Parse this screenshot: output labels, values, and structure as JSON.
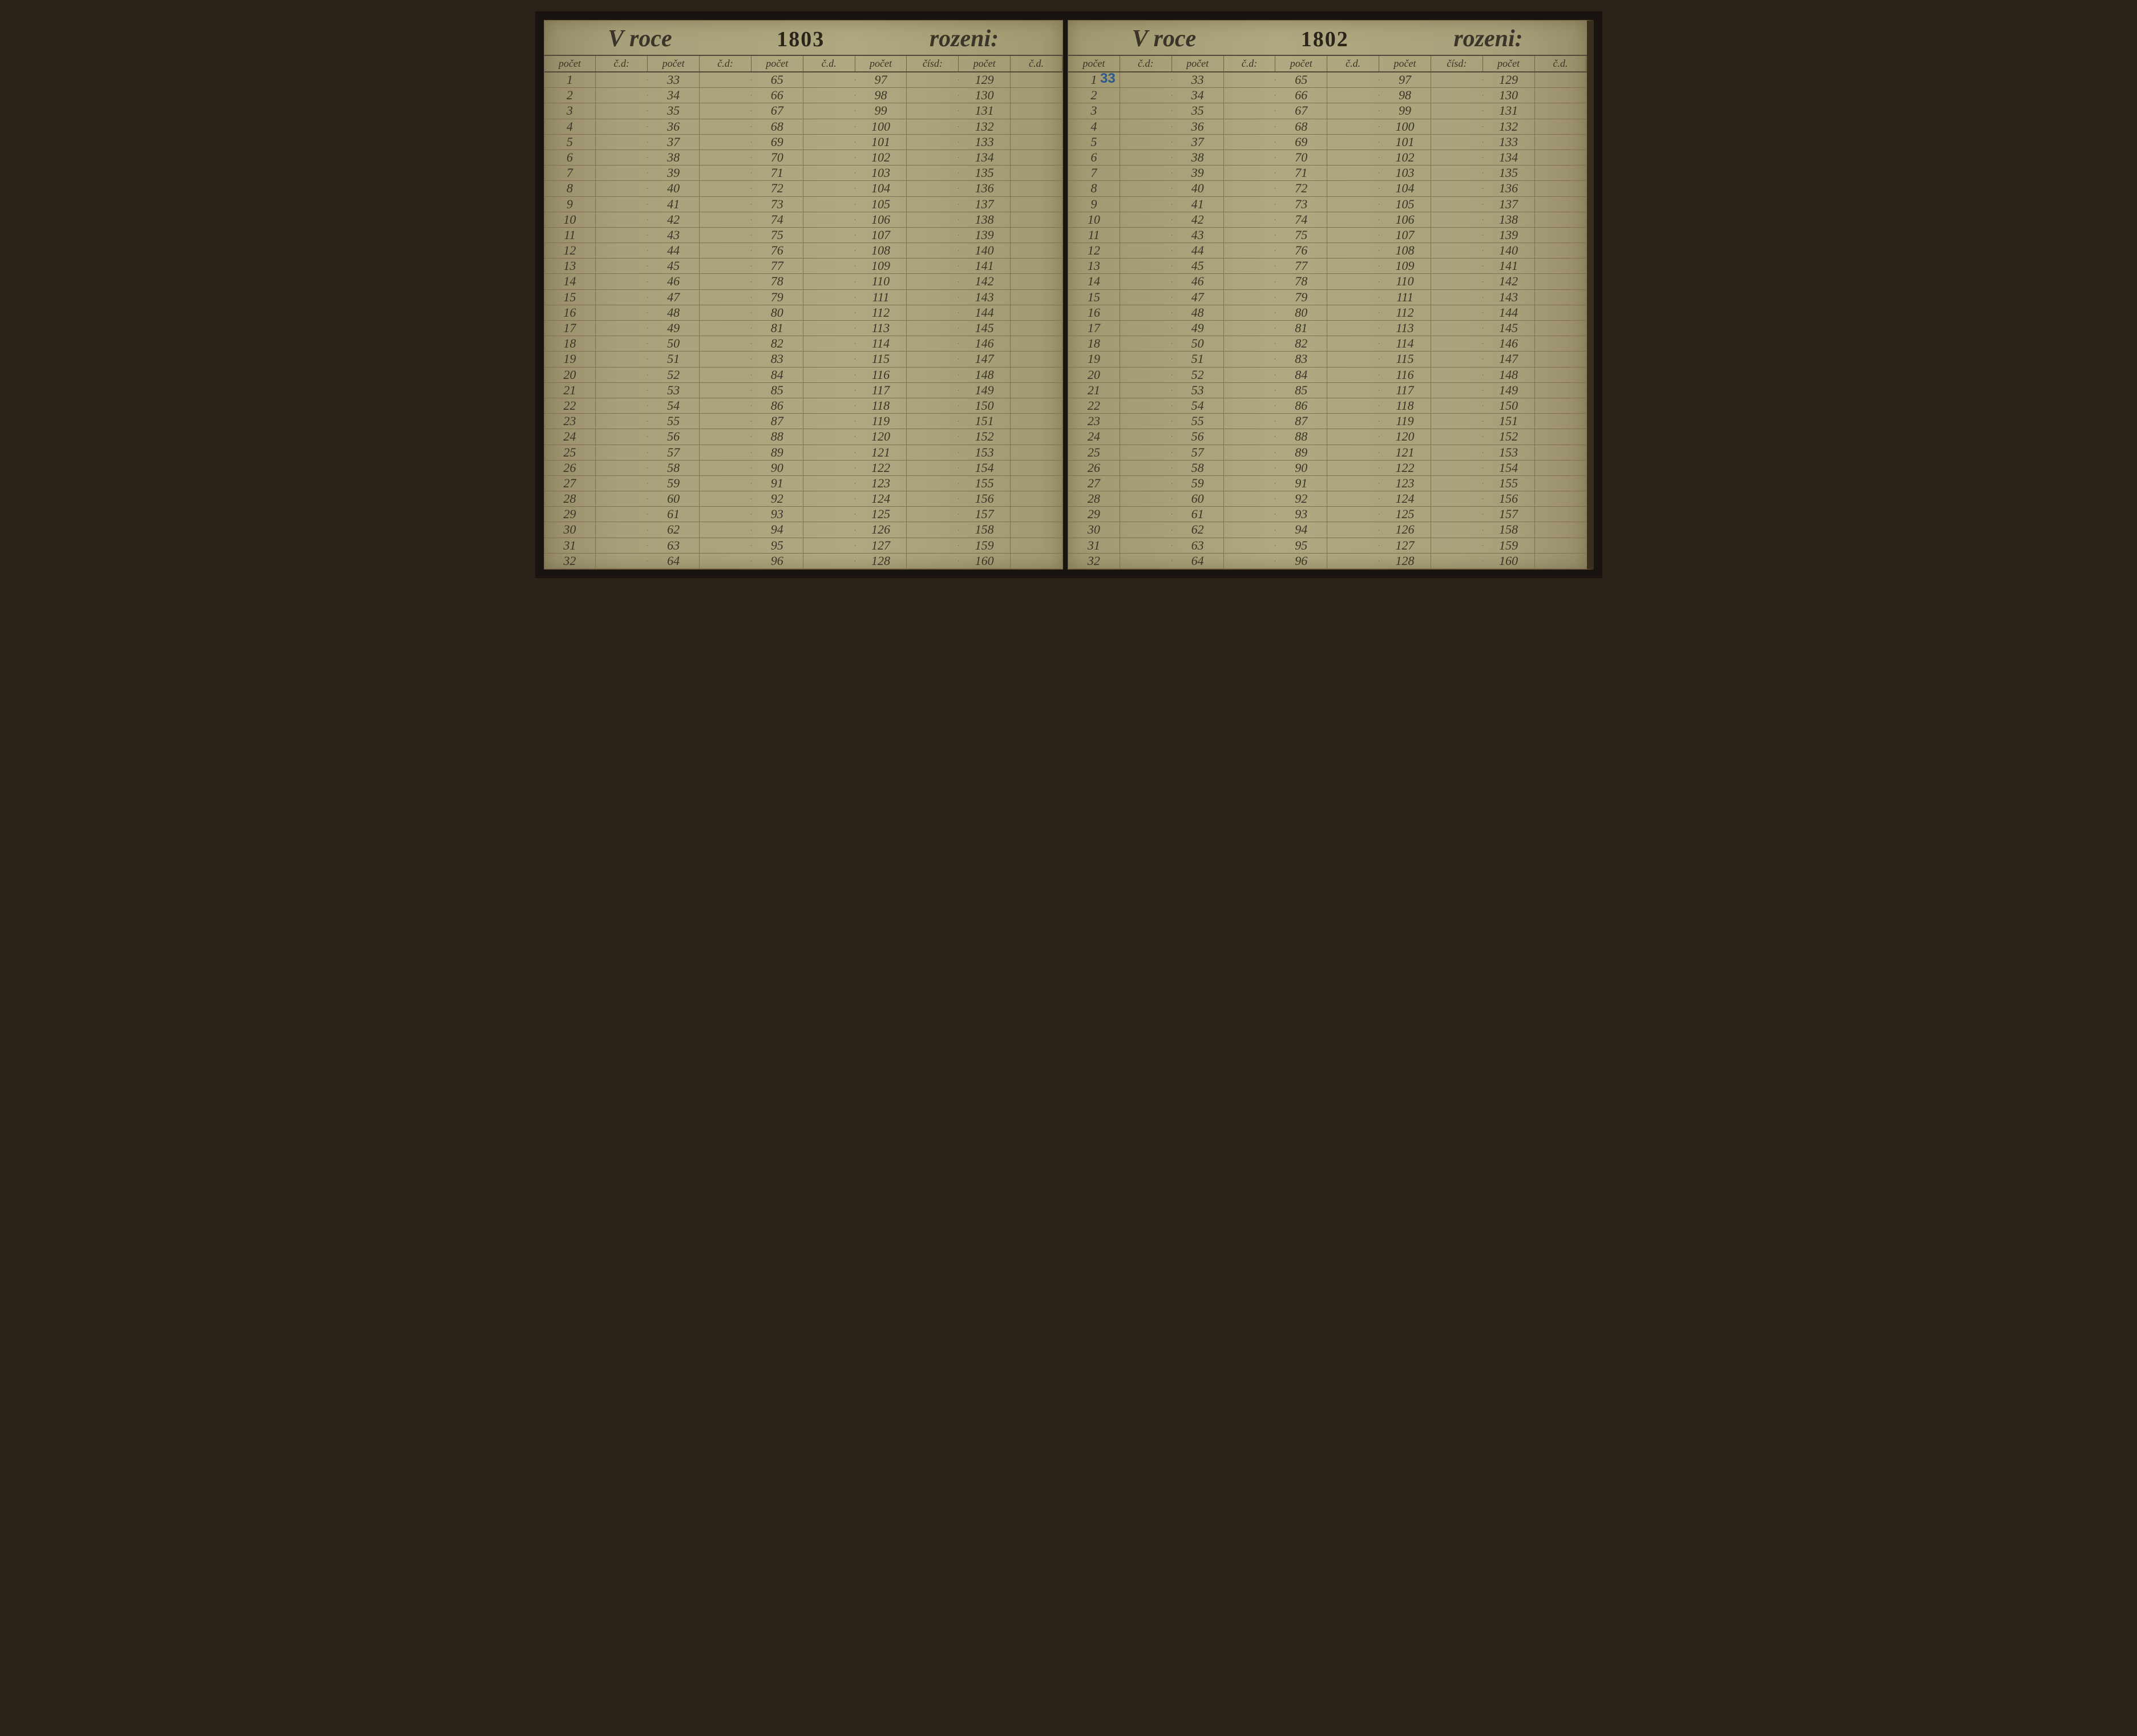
{
  "book": {
    "leftPage": {
      "titleLeft": "V roce",
      "year": "1803",
      "titleRight": "rozeni:",
      "colHeaders": [
        "počet",
        "č.d:",
        "počet",
        "č.d:",
        "počet",
        "č.d.",
        "počet",
        "čísd:",
        "počet",
        "č.d."
      ],
      "rows": [
        [
          "1",
          "",
          "33",
          "",
          "65",
          "",
          "97",
          "",
          "129",
          ""
        ],
        [
          "2",
          "",
          "34",
          "",
          "66",
          "",
          "98",
          "",
          "130",
          ""
        ],
        [
          "3",
          "",
          "35",
          "",
          "67",
          "",
          "99",
          "",
          "131",
          ""
        ],
        [
          "4",
          "",
          "36",
          "",
          "68",
          "",
          "100",
          "",
          "132",
          ""
        ],
        [
          "5",
          "",
          "37",
          "",
          "69",
          "",
          "101",
          "",
          "133",
          ""
        ],
        [
          "6",
          "",
          "38",
          "",
          "70",
          "",
          "102",
          "",
          "134",
          ""
        ],
        [
          "7",
          "",
          "39",
          "",
          "71",
          "",
          "103",
          "",
          "135",
          ""
        ],
        [
          "8",
          "",
          "40",
          "",
          "72",
          "",
          "104",
          "",
          "136",
          ""
        ],
        [
          "9",
          "",
          "41",
          "",
          "73",
          "",
          "105",
          "",
          "137",
          ""
        ],
        [
          "10",
          "",
          "42",
          "",
          "74",
          "",
          "106",
          "",
          "138",
          ""
        ],
        [
          "11",
          "",
          "43",
          "",
          "75",
          "",
          "107",
          "",
          "139",
          ""
        ],
        [
          "12",
          "",
          "44",
          "",
          "76",
          "",
          "108",
          "",
          "140",
          ""
        ],
        [
          "13",
          "",
          "45",
          "",
          "77",
          "",
          "109",
          "",
          "141",
          ""
        ],
        [
          "14",
          "",
          "46",
          "",
          "78",
          "",
          "110",
          "",
          "142",
          ""
        ],
        [
          "15",
          "",
          "47",
          "",
          "79",
          "",
          "111",
          "",
          "143",
          ""
        ],
        [
          "16",
          "",
          "48",
          "",
          "80",
          "",
          "112",
          "",
          "144",
          ""
        ],
        [
          "17",
          "",
          "49",
          "",
          "81",
          "",
          "113",
          "",
          "145",
          ""
        ],
        [
          "18",
          "",
          "50",
          "",
          "82",
          "",
          "114",
          "",
          "146",
          ""
        ],
        [
          "19",
          "",
          "51",
          "",
          "83",
          "",
          "115",
          "",
          "147",
          ""
        ],
        [
          "20",
          "",
          "52",
          "",
          "84",
          "",
          "116",
          "",
          "148",
          ""
        ],
        [
          "21",
          "",
          "53",
          "",
          "85",
          "",
          "117",
          "",
          "149",
          ""
        ],
        [
          "22",
          "",
          "54",
          "",
          "86",
          "",
          "118",
          "",
          "150",
          ""
        ],
        [
          "23",
          "",
          "55",
          "",
          "87",
          "",
          "119",
          "",
          "151",
          ""
        ],
        [
          "24",
          "",
          "56",
          "",
          "88",
          "",
          "120",
          "",
          "152",
          ""
        ],
        [
          "25",
          "",
          "57",
          "",
          "89",
          "",
          "121",
          "",
          "153",
          ""
        ],
        [
          "26",
          "",
          "58",
          "",
          "90",
          "",
          "122",
          "",
          "154",
          ""
        ],
        [
          "27",
          "",
          "59",
          "",
          "91",
          "",
          "123",
          "",
          "155",
          ""
        ],
        [
          "28",
          "",
          "60",
          "",
          "92",
          "",
          "124",
          "",
          "156",
          ""
        ],
        [
          "29",
          "",
          "61",
          "",
          "93",
          "",
          "125",
          "",
          "157",
          ""
        ],
        [
          "30",
          "",
          "62",
          "",
          "94",
          "",
          "126",
          "",
          "158",
          ""
        ],
        [
          "31",
          "",
          "63",
          "",
          "95",
          "",
          "127",
          "",
          "159",
          ""
        ],
        [
          "32",
          "",
          "64",
          "",
          "96",
          "",
          "128",
          "",
          "160",
          ""
        ]
      ]
    },
    "rightPage": {
      "titleLeft": "V roce",
      "year": "1802",
      "titleRight": "rozeni:",
      "annotation": "33",
      "colHeaders": [
        "počet",
        "č.d:",
        "počet",
        "č.d:",
        "počet",
        "č.d.",
        "počet",
        "čísd:",
        "počet",
        "č.d."
      ],
      "rows": [
        [
          "1",
          "",
          "33",
          "",
          "65",
          "",
          "97",
          "",
          "129",
          ""
        ],
        [
          "2",
          "",
          "34",
          "",
          "66",
          "",
          "98",
          "",
          "130",
          ""
        ],
        [
          "3",
          "",
          "35",
          "",
          "67",
          "",
          "99",
          "",
          "131",
          ""
        ],
        [
          "4",
          "",
          "36",
          "",
          "68",
          "",
          "100",
          "",
          "132",
          ""
        ],
        [
          "5",
          "",
          "37",
          "",
          "69",
          "",
          "101",
          "",
          "133",
          ""
        ],
        [
          "6",
          "",
          "38",
          "",
          "70",
          "",
          "102",
          "",
          "134",
          ""
        ],
        [
          "7",
          "",
          "39",
          "",
          "71",
          "",
          "103",
          "",
          "135",
          ""
        ],
        [
          "8",
          "",
          "40",
          "",
          "72",
          "",
          "104",
          "",
          "136",
          ""
        ],
        [
          "9",
          "",
          "41",
          "",
          "73",
          "",
          "105",
          "",
          "137",
          ""
        ],
        [
          "10",
          "",
          "42",
          "",
          "74",
          "",
          "106",
          "",
          "138",
          ""
        ],
        [
          "11",
          "",
          "43",
          "",
          "75",
          "",
          "107",
          "",
          "139",
          ""
        ],
        [
          "12",
          "",
          "44",
          "",
          "76",
          "",
          "108",
          "",
          "140",
          ""
        ],
        [
          "13",
          "",
          "45",
          "",
          "77",
          "",
          "109",
          "",
          "141",
          ""
        ],
        [
          "14",
          "",
          "46",
          "",
          "78",
          "",
          "110",
          "",
          "142",
          ""
        ],
        [
          "15",
          "",
          "47",
          "",
          "79",
          "",
          "111",
          "",
          "143",
          ""
        ],
        [
          "16",
          "",
          "48",
          "",
          "80",
          "",
          "112",
          "",
          "144",
          ""
        ],
        [
          "17",
          "",
          "49",
          "",
          "81",
          "",
          "113",
          "",
          "145",
          ""
        ],
        [
          "18",
          "",
          "50",
          "",
          "82",
          "",
          "114",
          "",
          "146",
          ""
        ],
        [
          "19",
          "",
          "51",
          "",
          "83",
          "",
          "115",
          "",
          "147",
          ""
        ],
        [
          "20",
          "",
          "52",
          "",
          "84",
          "",
          "116",
          "",
          "148",
          ""
        ],
        [
          "21",
          "",
          "53",
          "",
          "85",
          "",
          "117",
          "",
          "149",
          ""
        ],
        [
          "22",
          "",
          "54",
          "",
          "86",
          "",
          "118",
          "",
          "150",
          ""
        ],
        [
          "23",
          "",
          "55",
          "",
          "87",
          "",
          "119",
          "",
          "151",
          ""
        ],
        [
          "24",
          "",
          "56",
          "",
          "88",
          "",
          "120",
          "",
          "152",
          ""
        ],
        [
          "25",
          "",
          "57",
          "",
          "89",
          "",
          "121",
          "",
          "153",
          ""
        ],
        [
          "26",
          "",
          "58",
          "",
          "90",
          "",
          "122",
          "",
          "154",
          ""
        ],
        [
          "27",
          "",
          "59",
          "",
          "91",
          "",
          "123",
          "",
          "155",
          ""
        ],
        [
          "28",
          "",
          "60",
          "",
          "92",
          "",
          "124",
          "",
          "156",
          ""
        ],
        [
          "29",
          "",
          "61",
          "",
          "93",
          "",
          "125",
          "",
          "157",
          ""
        ],
        [
          "30",
          "",
          "62",
          "",
          "94",
          "",
          "126",
          "",
          "158",
          ""
        ],
        [
          "31",
          "",
          "63",
          "",
          "95",
          "",
          "127",
          "",
          "159",
          ""
        ],
        [
          "32",
          "",
          "64",
          "",
          "96",
          "",
          "128",
          "",
          "160",
          ""
        ]
      ]
    }
  },
  "styling": {
    "paperColor": "#a8a07a",
    "inkColor": "#3a3528",
    "ruleColor": "#807050",
    "annotationColor": "#2a5a8a",
    "coverColor": "#1a1410",
    "scriptFont": "Brush Script MT",
    "yearFont": "Georgia"
  }
}
